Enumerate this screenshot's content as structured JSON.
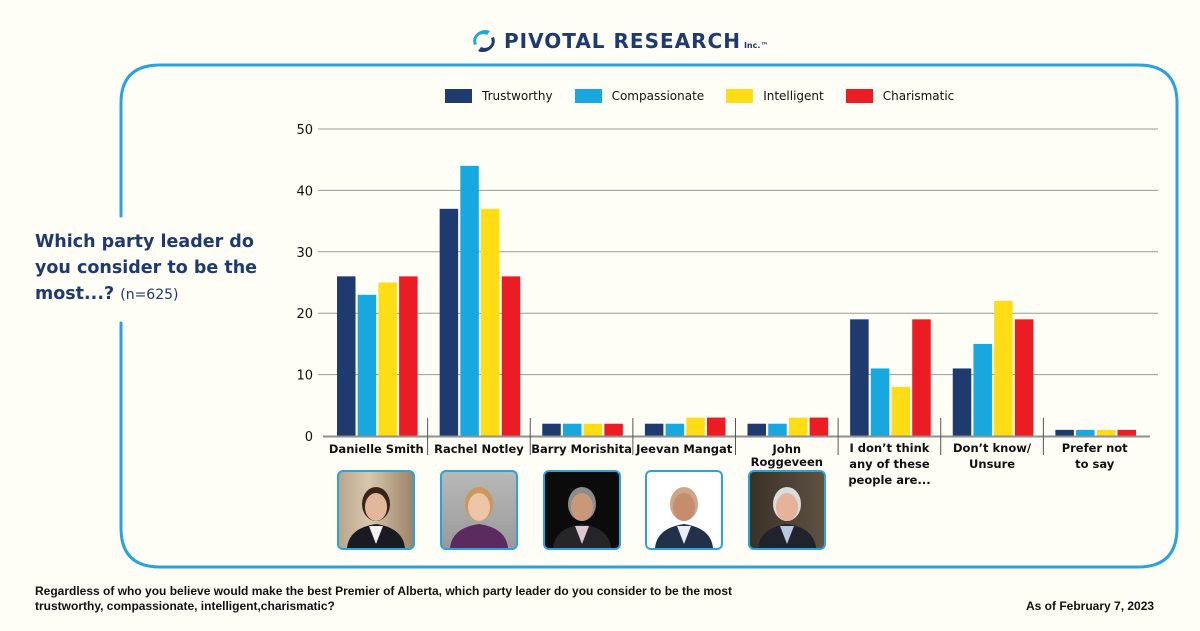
{
  "brand": {
    "name": "PIVOTAL RESEARCH",
    "suffix": "Inc.™",
    "icon": "swirl-logo-icon",
    "colors": {
      "navy": "#1e3a6e",
      "frame_blue": "#29a3dd"
    }
  },
  "question": {
    "text": "Which party leader do you consider to be the most...?",
    "sample": "(n=625)"
  },
  "footnote": "Regardless of who you believe would make the best Premier of Alberta, which party leader do you consider to be the most trustworthy, compassionate, intelligent,charismatic?",
  "as_of": "As of February 7, 2023",
  "photos": [
    {
      "name": "Danielle Smith",
      "icon": "portrait-photo"
    },
    {
      "name": "Rachel Notley",
      "icon": "portrait-photo"
    },
    {
      "name": "Barry Morishita",
      "icon": "portrait-photo"
    },
    {
      "name": "Jeevan Mangat",
      "icon": "portrait-photo"
    },
    {
      "name": "John Roggeveen",
      "icon": "portrait-photo"
    }
  ],
  "chart_data": {
    "type": "bar",
    "title": "Which party leader do you consider to be the most...? (n=625)",
    "xlabel": "",
    "ylabel": "",
    "ylim": [
      0,
      50
    ],
    "yticks": [
      0,
      10,
      20,
      30,
      40,
      50
    ],
    "grid": true,
    "legend_position": "top",
    "categories": [
      "Danielle Smith",
      "Rachel Notley",
      "Barry Morishita",
      "Jeevan Mangat",
      "John Roggeveen",
      "I don’t think any of these people are...",
      "Don’t know/ Unsure",
      "Prefer not to say"
    ],
    "category_label_lines": [
      [
        "Danielle Smith"
      ],
      [
        "Rachel Notley"
      ],
      [
        "Barry Morishita"
      ],
      [
        "Jeevan Mangat"
      ],
      [
        "John",
        "Roggeveen"
      ],
      [
        "I don’t think",
        "any of these",
        "people are..."
      ],
      [
        "Don’t know/",
        "Unsure"
      ],
      [
        "Prefer not",
        "to say"
      ]
    ],
    "series": [
      {
        "name": "Trustworthy",
        "color": "#1e3a6e",
        "values": [
          26,
          37,
          2,
          2,
          2,
          19,
          11,
          1
        ]
      },
      {
        "name": "Compassionate",
        "color": "#17a8e0",
        "values": [
          23,
          44,
          2,
          2,
          2,
          11,
          15,
          1
        ]
      },
      {
        "name": "Intelligent",
        "color": "#ffdd14",
        "values": [
          25,
          37,
          2,
          3,
          3,
          8,
          22,
          1
        ]
      },
      {
        "name": "Charismatic",
        "color": "#ec1c24",
        "values": [
          26,
          26,
          2,
          3,
          3,
          19,
          19,
          1
        ]
      }
    ]
  }
}
